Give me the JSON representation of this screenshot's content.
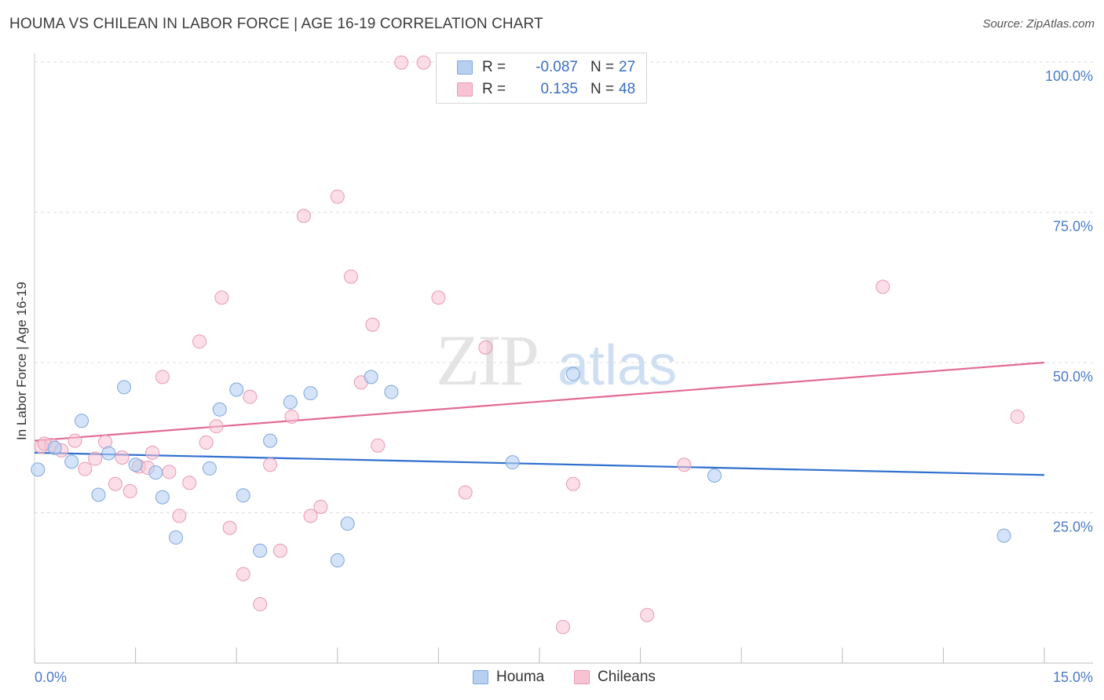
{
  "title": "HOUMA VS CHILEAN IN LABOR FORCE | AGE 16-19 CORRELATION CHART",
  "source": "Source: ZipAtlas.com",
  "watermark": {
    "zip": "ZIP",
    "atlas": "atlas"
  },
  "legend": {
    "rows": [
      {
        "r_label": "R =",
        "r_value": "-0.087",
        "n_label": "N =",
        "n_value": "27"
      },
      {
        "r_label": "R =",
        "r_value": "0.135",
        "n_label": "N =",
        "n_value": "48"
      }
    ]
  },
  "bottom_legend": {
    "houma": "Houma",
    "chileans": "Chileans"
  },
  "colors": {
    "houma_fill": "#b7d0f2",
    "houma_stroke": "#7fa6dc",
    "houma_line": "#2f6fcf",
    "chile_fill": "#f7c3d3",
    "chile_stroke": "#e79ab3",
    "chile_line": "#e26a93",
    "tick_text": "#4a7bc8",
    "grid": "#dddddd"
  },
  "chart_data": {
    "type": "scatter",
    "title": "HOUMA VS CHILEAN IN LABOR FORCE | AGE 16-19 CORRELATION CHART",
    "xlabel": "",
    "ylabel": "In Labor Force | Age 16-19",
    "xlim": [
      0,
      15
    ],
    "ylim": [
      0,
      103
    ],
    "x_tick_labels": [
      "0.0%",
      "15.0%"
    ],
    "y_ticks": [
      25,
      50,
      75,
      100
    ],
    "y_tick_labels": [
      "25.0%",
      "50.0%",
      "75.0%",
      "100.0%"
    ],
    "series": [
      {
        "name": "Houma",
        "r": -0.087,
        "n": 27,
        "trend": {
          "x": [
            0,
            15
          ],
          "y": [
            35.0,
            31.3
          ]
        },
        "points": [
          [
            0.05,
            32.2
          ],
          [
            0.3,
            35.8
          ],
          [
            0.55,
            33.5
          ],
          [
            0.7,
            40.3
          ],
          [
            0.95,
            28.0
          ],
          [
            1.1,
            34.9
          ],
          [
            1.33,
            45.9
          ],
          [
            1.5,
            33.0
          ],
          [
            1.8,
            31.7
          ],
          [
            1.9,
            27.6
          ],
          [
            2.1,
            20.9
          ],
          [
            2.6,
            32.4
          ],
          [
            2.75,
            42.2
          ],
          [
            3.0,
            45.5
          ],
          [
            3.1,
            27.9
          ],
          [
            3.35,
            18.7
          ],
          [
            3.5,
            37.0
          ],
          [
            3.8,
            43.4
          ],
          [
            4.1,
            44.9
          ],
          [
            4.5,
            17.1
          ],
          [
            4.65,
            23.2
          ],
          [
            5.0,
            47.6
          ],
          [
            5.3,
            45.1
          ],
          [
            7.1,
            33.4
          ],
          [
            8.0,
            48.1
          ],
          [
            10.1,
            31.2
          ],
          [
            14.4,
            21.2
          ]
        ]
      },
      {
        "name": "Chileans",
        "r": 0.135,
        "n": 48,
        "trend": {
          "x": [
            0,
            15
          ],
          "y": [
            37.0,
            50.0
          ]
        },
        "points": [
          [
            0.1,
            36.0
          ],
          [
            0.25,
            36.3
          ],
          [
            0.4,
            35.4
          ],
          [
            0.6,
            37.0
          ],
          [
            0.75,
            32.3
          ],
          [
            0.9,
            34.0
          ],
          [
            1.05,
            36.8
          ],
          [
            1.2,
            29.8
          ],
          [
            1.3,
            34.2
          ],
          [
            1.42,
            28.6
          ],
          [
            1.55,
            32.7
          ],
          [
            1.68,
            32.5
          ],
          [
            1.75,
            35.0
          ],
          [
            1.9,
            47.6
          ],
          [
            2.0,
            31.8
          ],
          [
            2.15,
            24.5
          ],
          [
            2.3,
            30.0
          ],
          [
            2.45,
            53.5
          ],
          [
            2.55,
            36.7
          ],
          [
            2.7,
            39.4
          ],
          [
            2.78,
            60.8
          ],
          [
            2.9,
            22.5
          ],
          [
            3.1,
            14.8
          ],
          [
            3.2,
            44.3
          ],
          [
            3.35,
            9.8
          ],
          [
            3.5,
            33.0
          ],
          [
            3.65,
            18.7
          ],
          [
            3.82,
            41.0
          ],
          [
            4.0,
            74.4
          ],
          [
            4.1,
            24.5
          ],
          [
            4.25,
            26.0
          ],
          [
            4.5,
            77.6
          ],
          [
            4.7,
            64.3
          ],
          [
            4.85,
            46.7
          ],
          [
            5.02,
            56.3
          ],
          [
            5.1,
            36.2
          ],
          [
            5.45,
            99.9
          ],
          [
            5.78,
            99.9
          ],
          [
            6.0,
            60.8
          ],
          [
            6.4,
            28.4
          ],
          [
            6.7,
            52.5
          ],
          [
            7.85,
            6.0
          ],
          [
            8.0,
            29.8
          ],
          [
            9.1,
            8.0
          ],
          [
            9.65,
            33.0
          ],
          [
            12.6,
            62.6
          ],
          [
            14.6,
            41.0
          ],
          [
            0.15,
            36.5
          ]
        ]
      }
    ]
  }
}
